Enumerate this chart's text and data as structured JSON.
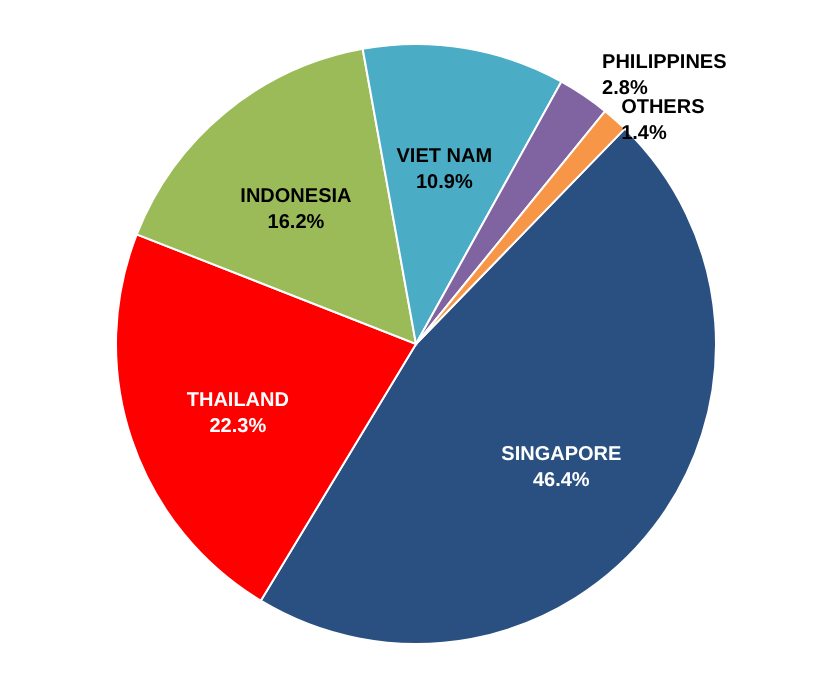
{
  "chart_data": {
    "type": "pie",
    "categories": [
      "SINGAPORE",
      "THAILAND",
      "INDONESIA",
      "VIET NAM",
      "PHILIPPINES",
      "OTHERS"
    ],
    "values": [
      46.4,
      22.3,
      16.2,
      10.9,
      2.8,
      1.4
    ],
    "value_labels": [
      "46.4%",
      "22.3%",
      "16.2%",
      "10.9%",
      "2.8%",
      "1.4%"
    ],
    "colors": [
      "#2a5082",
      "#ff0000",
      "#9bbb59",
      "#4bacc6",
      "#8064a2",
      "#f79646"
    ],
    "legend": false
  }
}
